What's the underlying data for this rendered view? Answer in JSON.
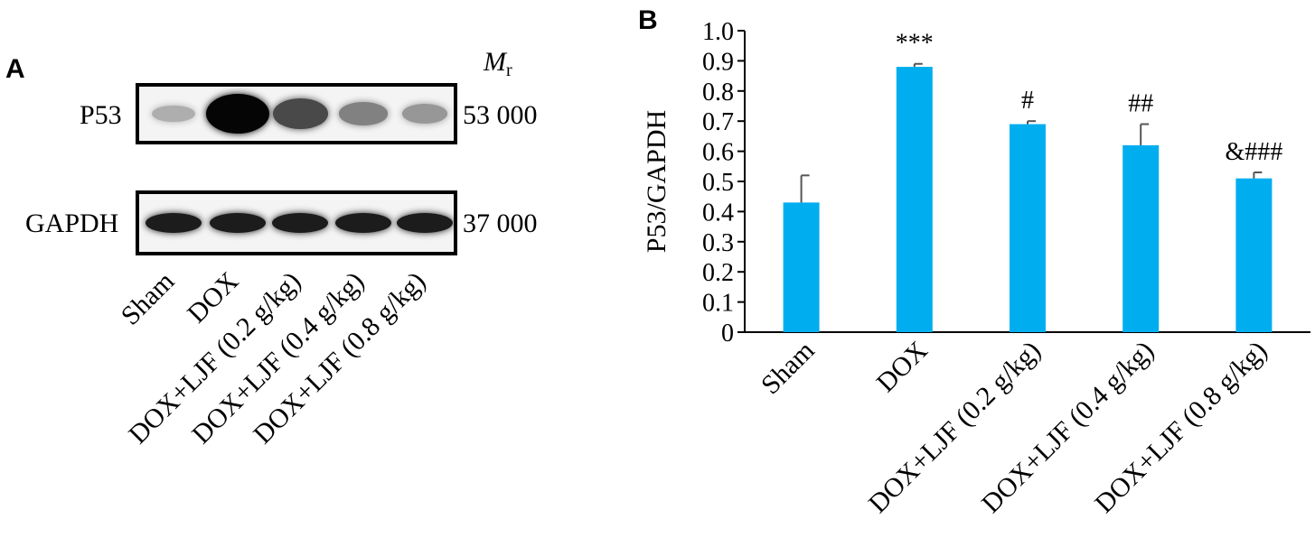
{
  "panel_a": {
    "letter": "A",
    "mr_label": "M",
    "mr_subscript": "r",
    "blots": [
      {
        "protein": "P53",
        "mw": "53 000",
        "band_intensity": [
          0.25,
          1.0,
          0.7,
          0.45,
          0.35
        ]
      },
      {
        "protein": "GAPDH",
        "mw": "37 000",
        "band_intensity": [
          0.9,
          0.9,
          0.9,
          0.9,
          0.9
        ]
      }
    ],
    "lanes": [
      "Sham",
      "DOX",
      "DOX+LJF (0.2 g/kg)",
      "DOX+LJF (0.4 g/kg)",
      "DOX+LJF (0.8 g/kg)"
    ]
  },
  "panel_b": {
    "letter": "B"
  },
  "chart_data": {
    "type": "bar",
    "categories": [
      "Sham",
      "DOX",
      "DOX+LJF (0.2 g/kg)",
      "DOX+LJF (0.4 g/kg)",
      "DOX+LJF (0.8 g/kg)"
    ],
    "values": [
      0.43,
      0.88,
      0.69,
      0.62,
      0.51
    ],
    "errors": [
      0.09,
      0.01,
      0.01,
      0.07,
      0.02
    ],
    "annotations": [
      "",
      "***",
      "#",
      "##",
      "&###"
    ],
    "ylabel": "P53/GAPDH",
    "ylim": [
      0,
      1.0
    ],
    "yticks": [
      "0",
      "0.1",
      "0.2",
      "0.3",
      "0.4",
      "0.5",
      "0.6",
      "0.7",
      "0.8",
      "0.9",
      "1.0"
    ],
    "bar_color": "#00aeef",
    "grid": false
  }
}
